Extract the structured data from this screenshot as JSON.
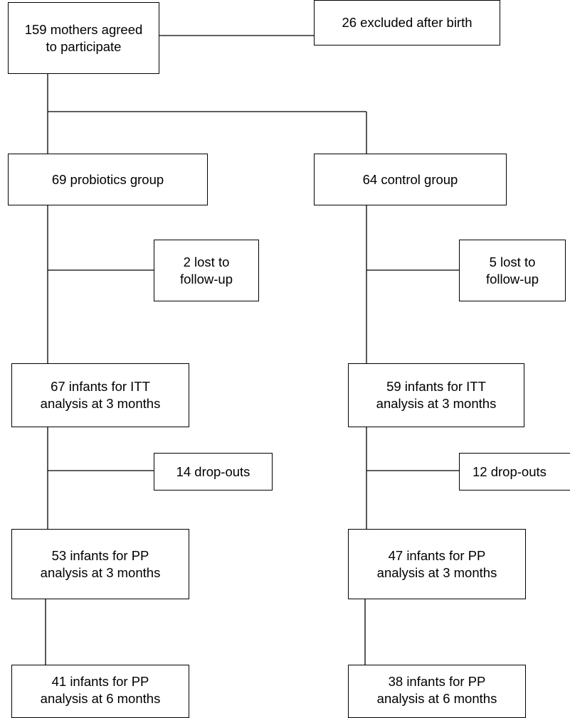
{
  "flowchart": {
    "enrolled": "159 mothers agreed\nto participate",
    "excluded": "26 excluded after birth",
    "probiotics": {
      "allocated": "69 probiotics group",
      "lost": "2 lost to\nfollow-up",
      "itt": "67 infants for ITT\nanalysis at 3 months",
      "dropouts": "14 drop-outs",
      "pp3": "53 infants for PP\nanalysis at 3 months",
      "pp6": "41 infants for PP\nanalysis at 6 months"
    },
    "control": {
      "allocated": "64 control group",
      "lost": "5 lost to\nfollow-up",
      "itt": "59 infants for ITT\nanalysis at 3 months",
      "dropouts": "12 drop-outs",
      "pp3": "47 infants for PP\nanalysis at 3 months",
      "pp6": "38 infants for PP\nanalysis at 6 months"
    }
  }
}
